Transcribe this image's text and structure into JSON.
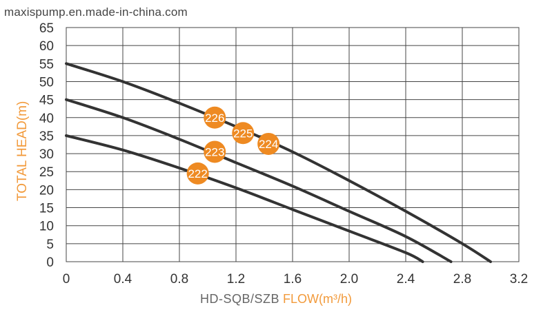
{
  "watermark": "maxispump.en.made-in-china.com",
  "chart_data": {
    "type": "line",
    "ylabel": "TOTAL HEAD(m)",
    "xlabel_model": "HD-SQB/SZB",
    "xlabel_flow": "FLOW(m³/h)",
    "xlim": [
      0,
      3.2
    ],
    "ylim": [
      0,
      65
    ],
    "xticks": [
      0,
      0.4,
      0.8,
      1.2,
      1.6,
      2.0,
      2.4,
      2.8,
      3.2
    ],
    "xtick_labels": [
      "0",
      "0.4",
      "0.8",
      "1.2",
      "1.6",
      "2.0",
      "2.4",
      "2.8",
      "3.2"
    ],
    "yticks": [
      0,
      5,
      10,
      15,
      20,
      25,
      30,
      35,
      40,
      45,
      50,
      55,
      60,
      65
    ],
    "ytick_labels": [
      "0",
      "5",
      "10",
      "15",
      "20",
      "25",
      "30",
      "35",
      "40",
      "45",
      "50",
      "55",
      "60",
      "65"
    ],
    "grid": true,
    "series": [
      {
        "name": "222",
        "x": [
          0,
          0.4,
          0.8,
          1.2,
          1.6,
          2.0,
          2.4,
          2.52
        ],
        "y": [
          35,
          31,
          26,
          20.5,
          14.5,
          8.5,
          2.5,
          0
        ]
      },
      {
        "name": "223",
        "x": [
          0,
          0.4,
          0.8,
          1.2,
          1.6,
          2.0,
          2.4,
          2.72
        ],
        "y": [
          45,
          40,
          34,
          27.5,
          21,
          14,
          7,
          0
        ]
      },
      {
        "name": "224",
        "x": [
          0,
          0.4,
          0.8,
          1.2,
          1.6,
          2.0,
          2.4,
          2.8,
          3.0
        ],
        "y": [
          55,
          50,
          44,
          37.5,
          30.5,
          22.5,
          14,
          5,
          0
        ]
      }
    ],
    "markers": [
      {
        "label": "226",
        "x": 1.05,
        "y": 40
      },
      {
        "label": "225",
        "x": 1.25,
        "y": 35.7
      },
      {
        "label": "224",
        "x": 1.43,
        "y": 32.7
      },
      {
        "label": "223",
        "x": 1.05,
        "y": 30.5
      },
      {
        "label": "222",
        "x": 0.93,
        "y": 24.5
      }
    ],
    "line_color": "#333333",
    "marker_color": "#ee8a22",
    "marker_text_color": "#ffffff",
    "grid_color": "#444444"
  }
}
